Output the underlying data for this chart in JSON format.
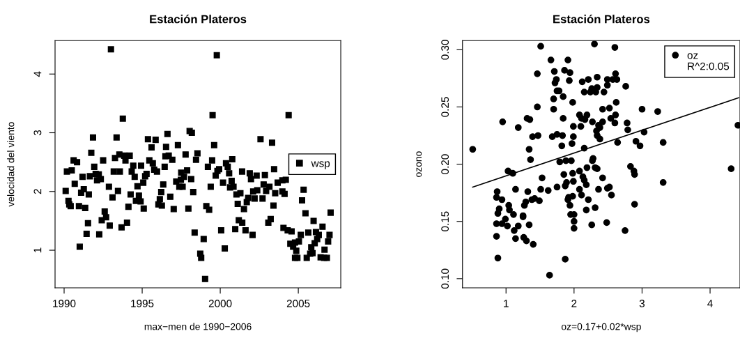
{
  "chart_data": [
    {
      "type": "scatter",
      "title": "Estación Plateros",
      "xlabel": "max−men de 1990−2006",
      "ylabel": "velocidad del viento",
      "xlim": [
        1989.42,
        2007.72
      ],
      "ylim": [
        0.36,
        4.57
      ],
      "xticks": [
        1990,
        1995,
        2000,
        2005
      ],
      "yticks": [
        1,
        2,
        3,
        4
      ],
      "grid": false,
      "legend": "right",
      "marker": "square",
      "series": [
        {
          "name": "wsp",
          "color": "#000000",
          "x": [
            1993.0,
            1993.76,
            1991.85,
            1993.36,
            1991.74,
            1995.37,
            1995.86,
            1996.62,
            1995.6,
            1996.53,
            1997.29,
            1998.04,
            1998.18,
            1990.61,
            1990.83,
            1992.5,
            1993.26,
            1993.54,
            1993.85,
            1994.2,
            1993.93,
            1995.46,
            1995.68,
            1996.49,
            1996.7,
            1996.93,
            1997.78,
            1998.54,
            1998.45,
            1990.18,
            1990.49,
            1991.93,
            1993.18,
            1993.57,
            1994.43,
            1994.33,
            1994.93,
            1996.44,
            1991.18,
            1991.65,
            1992.02,
            1992.22,
            1992.11,
            1992.35,
            1994.52,
            1995.19,
            1995.28,
            1995.77,
            1995.95,
            1997.5,
            1997.88,
            1997.68,
            1997.48,
            1997.18,
            1998.14,
            1990.68,
            1991.26,
            1991.09,
            1991.58,
            1992.87,
            1993.45,
            1995.07,
            1994.7,
            1996.35,
            1996.22,
            1997.38,
            1997.59,
            1998.27,
            1990.1,
            1990.28,
            1990.33,
            1990.42,
            1990.95,
            1991.35,
            1993.1,
            1994.26,
            1994.79,
            1994.6,
            1994.9,
            1994.12,
            1995.1,
            1996.13,
            1996.04,
            1996.26,
            1996.8,
            1997.02,
            1997.96,
            1992.6,
            1992.69,
            1992.41,
            1991.53,
            1992.92,
            1993.68,
            1994.03,
            1991.44,
            1992.25,
            1991.0,
            1998.36,
            1998.72,
            1998.78,
            1999.78,
            1999.51,
            2004.38,
            2002.58,
            2003.32,
            1999.61,
            1999.48,
            2000.77,
            1999.21,
            2000.37,
            2000.48,
            1999.93,
            1999.82,
            1999.71,
            2000.57,
            2001.4,
            2001.89,
            2002.33,
            2002.86,
            2003.45,
            2001.97,
            2000.73,
            2000.18,
            2000.63,
            2000.85,
            1999.39,
            2002.78,
            2003.15,
            2003.68,
            2003.98,
            2004.2,
            2001.04,
            2001.29,
            2002.11,
            2002.37,
            2002.94,
            2001.79,
            2001.7,
            2002.2,
            2002.71,
            2003.52,
            2003.98,
            2004.12,
            2005.34,
            2005.24,
            2001.12,
            2001.52,
            2003.41,
            1999.11,
            1999.29,
            2005.46,
            2007.07,
            2001.19,
            2001.41,
            2003.23,
            2003.08,
            2000.06,
            2000.96,
            2001.62,
            2002.07,
            2004.05,
            2004.32,
            2004.57,
            2005.98,
            2006.55,
            2005.64,
            2005.16,
            2006.13,
            2006.31,
            2007.0,
            2004.49,
            2004.79,
            2005.04,
            2006.21,
            2006.91,
            2006.05,
            2005.83,
            2004.67,
            2004.87,
            2006.68,
            2000.29,
            1998.94,
            2004.79,
            2004.94,
            2005.54,
            2005.76,
            2005.91,
            2006.43,
            2006.65,
            2006.83,
            1999.03
          ],
          "values": [
            4.42,
            3.24,
            2.92,
            2.92,
            2.66,
            2.89,
            2.88,
            2.98,
            2.75,
            2.76,
            2.79,
            3.03,
            3.0,
            2.53,
            2.5,
            2.53,
            2.57,
            2.63,
            2.61,
            2.61,
            2.53,
            2.53,
            2.48,
            2.6,
            2.61,
            2.54,
            2.63,
            2.65,
            2.54,
            2.34,
            2.36,
            2.42,
            2.34,
            2.34,
            2.44,
            2.34,
            2.44,
            2.42,
            2.25,
            2.26,
            2.3,
            2.29,
            2.19,
            2.21,
            2.25,
            2.26,
            2.3,
            2.37,
            2.34,
            2.32,
            2.36,
            2.25,
            2.2,
            2.17,
            2.21,
            2.13,
            2.04,
            1.98,
            1.95,
            2.08,
            2.01,
            2.15,
            2.09,
            2.12,
            1.99,
            2.08,
            2.08,
            1.99,
            2.01,
            1.84,
            1.78,
            1.75,
            1.75,
            1.72,
            1.9,
            1.95,
            1.93,
            1.84,
            1.83,
            1.74,
            1.71,
            1.87,
            1.78,
            1.76,
            1.91,
            1.7,
            1.71,
            1.66,
            1.56,
            1.51,
            1.46,
            1.42,
            1.39,
            1.47,
            1.28,
            1.27,
            1.06,
            1.3,
            0.94,
            0.87,
            4.32,
            3.3,
            3.3,
            2.89,
            2.83,
            2.79,
            2.53,
            2.55,
            2.42,
            2.48,
            2.42,
            2.38,
            2.35,
            2.27,
            2.31,
            2.34,
            2.31,
            2.27,
            2.28,
            2.38,
            2.21,
            2.18,
            2.15,
            2.07,
            2.08,
            2.08,
            2.12,
            2.08,
            2.15,
            2.19,
            2.2,
            1.95,
            1.97,
            2.0,
            2.02,
            2.01,
            1.89,
            1.82,
            1.88,
            1.88,
            1.97,
            2.0,
            1.96,
            2.03,
            1.85,
            1.79,
            1.7,
            1.76,
            1.75,
            1.69,
            1.63,
            1.64,
            1.51,
            1.47,
            1.53,
            1.47,
            1.34,
            1.36,
            1.34,
            1.26,
            1.38,
            1.34,
            1.32,
            1.5,
            1.4,
            1.3,
            1.26,
            1.31,
            1.26,
            1.26,
            1.11,
            1.13,
            1.15,
            1.19,
            1.15,
            1.12,
            1.05,
            1.06,
            0.99,
            1.01,
            1.03,
            1.19,
            0.87,
            0.87,
            0.87,
            0.94,
            0.95,
            0.88,
            0.87,
            0.87,
            0.51
          ]
        }
      ]
    },
    {
      "type": "scatter",
      "title": "Estación Plateros",
      "xlabel": "oz=0.17+0.02*wsp",
      "ylabel": "ozono",
      "xlim": [
        0.36,
        4.44
      ],
      "ylim": [
        0.092,
        0.308
      ],
      "xticks": [
        1,
        2,
        3,
        4
      ],
      "yticks": [
        {
          "value": 0.1,
          "label": "0.10"
        },
        {
          "value": 0.15,
          "label": "0.15"
        },
        {
          "value": 0.2,
          "label": "0.20"
        },
        {
          "value": 0.25,
          "label": "0.25"
        },
        {
          "value": 0.3,
          "label": "0.30"
        }
      ],
      "grid": false,
      "legend": "top right",
      "marker": "circle",
      "annotations": [
        "R^2:0.05"
      ],
      "series": [
        {
          "name": "oz",
          "color": "#000000",
          "x": [
            0.51,
            0.95,
            1.03,
            1.1,
            1.18,
            1.31,
            1.35,
            1.34,
            1.36,
            1.39,
            1.47,
            1.46,
            1.46,
            1.51,
            1.53,
            1.51,
            1.62,
            1.66,
            1.71,
            1.74,
            1.72,
            1.75,
            1.78,
            1.7,
            1.7,
            1.84,
            1.86,
            1.91,
            1.94,
            1.93,
            1.98,
            1.68,
            1.75,
            1.83,
            1.82,
            1.84,
            1.97,
            1.99,
            1.99,
            1.79,
            1.88,
            1.96,
            1.98,
            1.85,
            1.89,
            1.87,
            1.75,
            1.99,
            1.91,
            1.92,
            1.98,
            1.94,
            1.95,
            2.0,
            2.0,
            2.0,
            1.87,
            1.64,
            0.87,
            0.86,
            0.94,
            0.9,
            0.88,
            0.86,
            0.94,
            0.99,
            1.02,
            1.04,
            1.05,
            1.14,
            1.11,
            1.12,
            1.14,
            1.18,
            0.86,
            0.88,
            1.25,
            1.25,
            1.27,
            1.29,
            1.32,
            1.26,
            1.3,
            1.34,
            1.4,
            1.38,
            1.42,
            1.49,
            2.3,
            2.6,
            2.12,
            2.21,
            2.34,
            2.49,
            2.57,
            2.63,
            2.61,
            2.76,
            2.49,
            2.26,
            2.34,
            2.15,
            2.24,
            2.32,
            2.44,
            2.62,
            2.42,
            2.52,
            3.0,
            3.23,
            2.08,
            2.19,
            2.11,
            2.16,
            2.27,
            2.42,
            2.54,
            2.61,
            2.6,
            2.1,
            2.36,
            2.38,
            2.33,
            2.78,
            2.79,
            3.03,
            2.34,
            2.38,
            2.64,
            2.91,
            2.97,
            3.31,
            4.41,
            2.15,
            2.28,
            2.27,
            2.31,
            2.34,
            2.19,
            2.08,
            2.13,
            2.15,
            2.18,
            2.42,
            2.49,
            2.52,
            2.36,
            2.08,
            2.11,
            2.55,
            2.21,
            2.31,
            2.18,
            2.26,
            2.48,
            2.75,
            2.89,
            2.83,
            2.88,
            2.89,
            3.31,
            4.31
          ],
          "values": [
            0.213,
            0.237,
            0.194,
            0.192,
            0.232,
            0.24,
            0.239,
            0.213,
            0.204,
            0.224,
            0.225,
            0.25,
            0.279,
            0.303,
            0.188,
            0.178,
            0.177,
            0.291,
            0.281,
            0.274,
            0.271,
            0.264,
            0.264,
            0.257,
            0.248,
            0.259,
            0.282,
            0.291,
            0.28,
            0.273,
            0.254,
            0.224,
            0.226,
            0.225,
            0.216,
            0.24,
            0.218,
            0.224,
            0.233,
            0.202,
            0.203,
            0.203,
            0.192,
            0.191,
            0.184,
            0.181,
            0.18,
            0.185,
            0.169,
            0.171,
            0.172,
            0.164,
            0.156,
            0.156,
            0.15,
            0.144,
            0.117,
            0.103,
            0.176,
            0.171,
            0.169,
            0.161,
            0.157,
            0.148,
            0.148,
            0.152,
            0.146,
            0.164,
            0.16,
            0.178,
            0.156,
            0.142,
            0.135,
            0.146,
            0.137,
            0.118,
            0.155,
            0.154,
            0.164,
            0.167,
            0.176,
            0.136,
            0.133,
            0.147,
            0.13,
            0.169,
            0.17,
            0.168,
            0.305,
            0.302,
            0.272,
            0.274,
            0.276,
            0.274,
            0.274,
            0.274,
            0.279,
            0.268,
            0.269,
            0.266,
            0.267,
            0.263,
            0.263,
            0.263,
            0.263,
            0.254,
            0.248,
            0.249,
            0.248,
            0.246,
            0.243,
            0.243,
            0.24,
            0.239,
            0.237,
            0.237,
            0.24,
            0.243,
            0.236,
            0.233,
            0.234,
            0.232,
            0.229,
            0.236,
            0.23,
            0.228,
            0.225,
            0.222,
            0.219,
            0.22,
            0.216,
            0.219,
            0.234,
            0.214,
            0.205,
            0.203,
            0.197,
            0.196,
            0.197,
            0.194,
            0.189,
            0.186,
            0.182,
            0.188,
            0.179,
            0.18,
            0.178,
            0.178,
            0.173,
            0.173,
            0.169,
            0.162,
            0.16,
            0.147,
            0.149,
            0.142,
            0.165,
            0.198,
            0.194,
            0.191,
            0.184,
            0.196
          ]
        },
        {
          "type": "line",
          "marker": "none",
          "color": "#000000",
          "x": [
            0.51,
            4.42
          ],
          "values": [
            0.18,
            0.258
          ]
        }
      ]
    }
  ]
}
